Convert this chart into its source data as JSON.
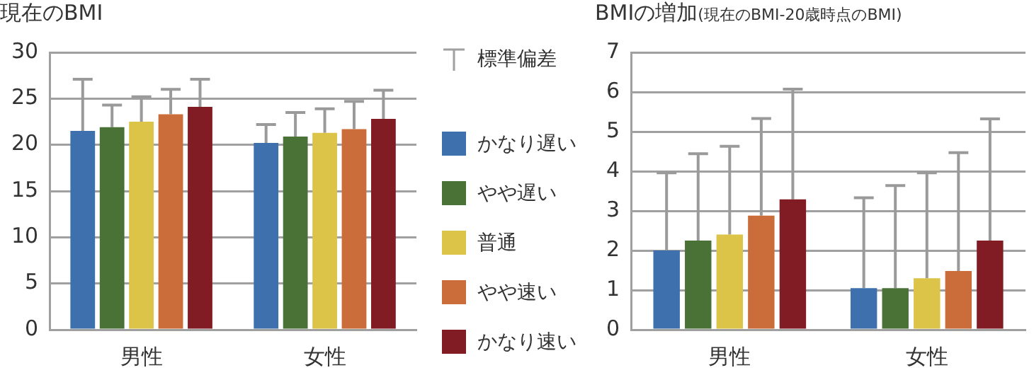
{
  "chart_data": [
    {
      "type": "bar",
      "title": "現在のBMI",
      "categories": [
        "男性",
        "女性"
      ],
      "ylim": [
        0,
        30
      ],
      "yticks": [
        0,
        5,
        10,
        15,
        20,
        25,
        30
      ],
      "grid": "y",
      "legend": "right",
      "annotations": [
        "標準偏差"
      ],
      "series": [
        {
          "name": "かなり遅い",
          "color": "#3d70ad",
          "values": [
            21.5,
            20.2
          ],
          "errors": [
            [
              21.5,
              27.1
            ],
            [
              20.2,
              22.2
            ]
          ]
        },
        {
          "name": "やや遅い",
          "color": "#4a7236",
          "values": [
            21.9,
            20.9
          ],
          "errors": [
            [
              21.9,
              24.3
            ],
            [
              20.9,
              23.5
            ]
          ]
        },
        {
          "name": "普通",
          "color": "#dbc447",
          "values": [
            22.5,
            21.3
          ],
          "errors": [
            [
              22.5,
              25.2
            ],
            [
              21.3,
              23.9
            ]
          ]
        },
        {
          "name": "やや速い",
          "color": "#cb6d3b",
          "values": [
            23.3,
            21.7
          ],
          "errors": [
            [
              23.3,
              26.0
            ],
            [
              21.7,
              24.7
            ]
          ]
        },
        {
          "name": "かなり速い",
          "color": "#811c24",
          "values": [
            24.1,
            22.8
          ],
          "errors": [
            [
              24.1,
              27.1
            ],
            [
              22.8,
              25.9
            ]
          ]
        }
      ]
    },
    {
      "type": "bar",
      "title": "BMIの増加",
      "subtitle": "(現在のBMI-20歳時点のBMI)",
      "categories": [
        "男性",
        "女性"
      ],
      "ylim": [
        0,
        7
      ],
      "yticks": [
        0,
        1,
        2,
        3,
        4,
        5,
        6,
        7
      ],
      "grid": "y",
      "series": [
        {
          "color": "#3d70ad",
          "values": [
            2.0,
            1.05
          ],
          "errors": [
            [
              2.0,
              3.96
            ],
            [
              1.05,
              3.33
            ]
          ]
        },
        {
          "color": "#4a7236",
          "values": [
            2.25,
            1.05
          ],
          "errors": [
            [
              2.25,
              4.44
            ],
            [
              1.05,
              3.64
            ]
          ]
        },
        {
          "color": "#dbc447",
          "values": [
            2.4,
            1.3
          ],
          "errors": [
            [
              2.4,
              4.63
            ],
            [
              1.3,
              3.96
            ]
          ]
        },
        {
          "color": "#cb6d3b",
          "values": [
            2.88,
            1.48
          ],
          "errors": [
            [
              2.88,
              5.33
            ],
            [
              1.48,
              4.47
            ]
          ]
        },
        {
          "color": "#811c24",
          "values": [
            3.29,
            2.25
          ],
          "errors": [
            [
              3.29,
              6.07
            ],
            [
              2.25,
              5.32
            ]
          ]
        }
      ]
    }
  ]
}
